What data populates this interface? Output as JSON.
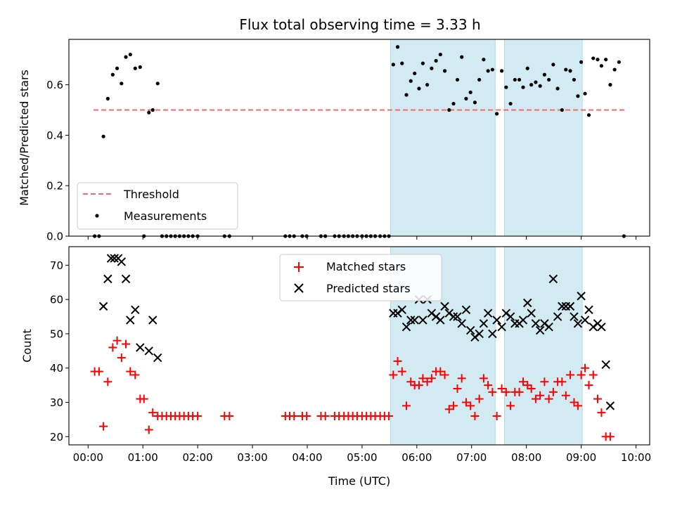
{
  "figure": {
    "title": "Flux total observing time = 3.33 h",
    "xlabel": "Time (UTC)",
    "x_ticks": [
      "00:00",
      "01:00",
      "02:00",
      "03:00",
      "04:00",
      "05:00",
      "06:00",
      "07:00",
      "08:00",
      "09:00",
      "10:00"
    ]
  },
  "colors": {
    "shade": "#add8e6",
    "threshold": "#ff6666",
    "matched": "#ff0000",
    "predicted": "#000000",
    "measurement": "#000000"
  },
  "chart_data": [
    {
      "type": "scatter",
      "ylabel": "Matched/Predicted stars",
      "xlim": [
        -0.35,
        10.25
      ],
      "ylim": [
        0,
        0.78
      ],
      "y_ticks": [
        "0.0",
        "0.2",
        "0.4",
        "0.6"
      ],
      "y_tick_values": [
        0,
        0.2,
        0.4,
        0.6
      ],
      "x_unit": "hours UTC",
      "legend": {
        "position": "lower-left",
        "entries": [
          "Threshold",
          "Measurements"
        ]
      },
      "shaded_intervals": [
        [
          5.52,
          7.43
        ],
        [
          7.6,
          9.02
        ]
      ],
      "threshold": {
        "name": "Threshold",
        "value": 0.5,
        "x_range": [
          0.1,
          9.8
        ]
      },
      "series": [
        {
          "name": "Measurements",
          "points": [
            [
              0.12,
              0.0
            ],
            [
              0.2,
              0.0
            ],
            [
              0.28,
              0.395
            ],
            [
              0.36,
              0.545
            ],
            [
              0.45,
              0.64
            ],
            [
              0.53,
              0.665
            ],
            [
              0.61,
              0.605
            ],
            [
              0.69,
              0.71
            ],
            [
              0.77,
              0.72
            ],
            [
              0.86,
              0.665
            ],
            [
              0.95,
              0.67
            ],
            [
              1.02,
              0.0
            ],
            [
              1.11,
              0.49
            ],
            [
              1.18,
              0.5
            ],
            [
              1.27,
              0.605
            ],
            [
              1.35,
              0.0
            ],
            [
              1.43,
              0.0
            ],
            [
              1.51,
              0.0
            ],
            [
              1.59,
              0.0
            ],
            [
              1.67,
              0.0
            ],
            [
              1.75,
              0.0
            ],
            [
              1.83,
              0.0
            ],
            [
              1.91,
              0.0
            ],
            [
              2.0,
              0.0
            ],
            [
              2.49,
              0.0
            ],
            [
              2.58,
              0.0
            ],
            [
              3.6,
              0.0
            ],
            [
              3.68,
              0.0
            ],
            [
              3.76,
              0.0
            ],
            [
              3.91,
              0.0
            ],
            [
              3.99,
              0.0
            ],
            [
              4.25,
              0.0
            ],
            [
              4.33,
              0.0
            ],
            [
              4.5,
              0.0
            ],
            [
              4.58,
              0.0
            ],
            [
              4.67,
              0.0
            ],
            [
              4.75,
              0.0
            ],
            [
              4.83,
              0.0
            ],
            [
              4.91,
              0.0
            ],
            [
              5.0,
              0.0
            ],
            [
              5.08,
              0.0
            ],
            [
              5.16,
              0.0
            ],
            [
              5.24,
              0.0
            ],
            [
              5.33,
              0.0
            ],
            [
              5.41,
              0.0
            ],
            [
              5.49,
              0.0
            ],
            [
              5.57,
              0.68
            ],
            [
              5.65,
              0.75
            ],
            [
              5.73,
              0.685
            ],
            [
              5.81,
              0.56
            ],
            [
              5.89,
              0.615
            ],
            [
              5.96,
              0.645
            ],
            [
              6.04,
              0.585
            ],
            [
              6.11,
              0.685
            ],
            [
              6.19,
              0.6
            ],
            [
              6.27,
              0.665
            ],
            [
              6.35,
              0.695
            ],
            [
              6.43,
              0.72
            ],
            [
              6.51,
              0.655
            ],
            [
              6.59,
              0.5
            ],
            [
              6.67,
              0.525
            ],
            [
              6.74,
              0.62
            ],
            [
              6.82,
              0.71
            ],
            [
              6.9,
              0.545
            ],
            [
              6.98,
              0.57
            ],
            [
              7.06,
              0.53
            ],
            [
              7.14,
              0.62
            ],
            [
              7.22,
              0.7
            ],
            [
              7.3,
              0.655
            ],
            [
              7.38,
              0.66
            ],
            [
              7.46,
              0.485
            ],
            [
              7.55,
              0.655
            ],
            [
              7.63,
              0.59
            ],
            [
              7.71,
              0.525
            ],
            [
              7.79,
              0.62
            ],
            [
              7.87,
              0.62
            ],
            [
              7.94,
              0.59
            ],
            [
              8.02,
              0.665
            ],
            [
              8.09,
              0.6
            ],
            [
              8.17,
              0.61
            ],
            [
              8.25,
              0.595
            ],
            [
              8.33,
              0.64
            ],
            [
              8.41,
              0.62
            ],
            [
              8.49,
              0.68
            ],
            [
              8.57,
              0.585
            ],
            [
              8.65,
              0.5
            ],
            [
              8.72,
              0.66
            ],
            [
              8.8,
              0.655
            ],
            [
              8.87,
              0.62
            ],
            [
              8.94,
              0.555
            ],
            [
              9.0,
              0.69
            ],
            [
              9.07,
              0.565
            ],
            [
              9.14,
              0.48
            ],
            [
              9.22,
              0.705
            ],
            [
              9.3,
              0.7
            ],
            [
              9.37,
              0.675
            ],
            [
              9.45,
              0.7
            ],
            [
              9.53,
              0.6
            ],
            [
              9.61,
              0.66
            ],
            [
              9.69,
              0.69
            ],
            [
              9.78,
              0.0
            ]
          ]
        }
      ]
    },
    {
      "type": "scatter",
      "ylabel": "Count",
      "xlim": [
        -0.35,
        10.25
      ],
      "ylim": [
        17.6,
        75.4
      ],
      "y_ticks": [
        "20",
        "30",
        "40",
        "50",
        "60",
        "70"
      ],
      "y_tick_values": [
        20,
        30,
        40,
        50,
        60,
        70
      ],
      "x_unit": "hours UTC",
      "legend": {
        "position": "top-center",
        "entries": [
          "Matched stars",
          "Predicted stars"
        ]
      },
      "shaded_intervals": [
        [
          5.52,
          7.43
        ],
        [
          7.6,
          9.02
        ]
      ],
      "series": [
        {
          "name": "Matched stars",
          "marker": "+",
          "points": [
            [
              0.12,
              39
            ],
            [
              0.2,
              39
            ],
            [
              0.28,
              23
            ],
            [
              0.36,
              36
            ],
            [
              0.45,
              46
            ],
            [
              0.53,
              48
            ],
            [
              0.61,
              43
            ],
            [
              0.69,
              47
            ],
            [
              0.77,
              39
            ],
            [
              0.86,
              38
            ],
            [
              0.95,
              31
            ],
            [
              1.02,
              31
            ],
            [
              1.11,
              22
            ],
            [
              1.18,
              27
            ],
            [
              1.27,
              26
            ],
            [
              1.35,
              26
            ],
            [
              1.43,
              26
            ],
            [
              1.51,
              26
            ],
            [
              1.59,
              26
            ],
            [
              1.67,
              26
            ],
            [
              1.75,
              26
            ],
            [
              1.83,
              26
            ],
            [
              1.91,
              26
            ],
            [
              2.0,
              26
            ],
            [
              2.49,
              26
            ],
            [
              2.58,
              26
            ],
            [
              3.6,
              26
            ],
            [
              3.68,
              26
            ],
            [
              3.76,
              26
            ],
            [
              3.91,
              26
            ],
            [
              3.99,
              26
            ],
            [
              4.25,
              26
            ],
            [
              4.33,
              26
            ],
            [
              4.5,
              26
            ],
            [
              4.58,
              26
            ],
            [
              4.67,
              26
            ],
            [
              4.75,
              26
            ],
            [
              4.83,
              26
            ],
            [
              4.91,
              26
            ],
            [
              5.0,
              26
            ],
            [
              5.08,
              26
            ],
            [
              5.16,
              26
            ],
            [
              5.24,
              26
            ],
            [
              5.33,
              26
            ],
            [
              5.41,
              26
            ],
            [
              5.49,
              26
            ],
            [
              5.57,
              38
            ],
            [
              5.65,
              42
            ],
            [
              5.73,
              39
            ],
            [
              5.81,
              29
            ],
            [
              5.89,
              36
            ],
            [
              5.96,
              35
            ],
            [
              6.04,
              35
            ],
            [
              6.11,
              37
            ],
            [
              6.19,
              36
            ],
            [
              6.27,
              37
            ],
            [
              6.35,
              39
            ],
            [
              6.43,
              39
            ],
            [
              6.51,
              38
            ],
            [
              6.59,
              28
            ],
            [
              6.67,
              29
            ],
            [
              6.74,
              34
            ],
            [
              6.82,
              37
            ],
            [
              6.9,
              30
            ],
            [
              6.98,
              29
            ],
            [
              7.06,
              26
            ],
            [
              7.14,
              31
            ],
            [
              7.22,
              37
            ],
            [
              7.3,
              35
            ],
            [
              7.38,
              33
            ],
            [
              7.46,
              26
            ],
            [
              7.55,
              34
            ],
            [
              7.63,
              33
            ],
            [
              7.71,
              29
            ],
            [
              7.79,
              33
            ],
            [
              7.87,
              33
            ],
            [
              7.94,
              36
            ],
            [
              8.02,
              35
            ],
            [
              8.09,
              34
            ],
            [
              8.17,
              31
            ],
            [
              8.25,
              32
            ],
            [
              8.33,
              36
            ],
            [
              8.41,
              31
            ],
            [
              8.49,
              33
            ],
            [
              8.57,
              36
            ],
            [
              8.65,
              36
            ],
            [
              8.72,
              32
            ],
            [
              8.8,
              38
            ],
            [
              8.87,
              30
            ],
            [
              8.94,
              29
            ],
            [
              9.0,
              38
            ],
            [
              9.07,
              40
            ],
            [
              9.14,
              35
            ],
            [
              9.22,
              38
            ],
            [
              9.3,
              31
            ],
            [
              9.37,
              27
            ],
            [
              9.45,
              20
            ],
            [
              9.53,
              20
            ]
          ]
        },
        {
          "name": "Predicted stars",
          "marker": "x",
          "points": [
            [
              0.28,
              58
            ],
            [
              0.36,
              66
            ],
            [
              0.42,
              72
            ],
            [
              0.48,
              72
            ],
            [
              0.55,
              72
            ],
            [
              0.61,
              71
            ],
            [
              0.69,
              66
            ],
            [
              0.77,
              54
            ],
            [
              0.86,
              57
            ],
            [
              0.95,
              46
            ],
            [
              1.11,
              45
            ],
            [
              1.18,
              54
            ],
            [
              1.27,
              43
            ],
            [
              5.57,
              56
            ],
            [
              5.65,
              56
            ],
            [
              5.73,
              57
            ],
            [
              5.81,
              52
            ],
            [
              5.89,
              54
            ],
            [
              5.96,
              54
            ],
            [
              6.04,
              60
            ],
            [
              6.11,
              54
            ],
            [
              6.19,
              60
            ],
            [
              6.27,
              56
            ],
            [
              6.35,
              55
            ],
            [
              6.43,
              54
            ],
            [
              6.51,
              58
            ],
            [
              6.59,
              56
            ],
            [
              6.67,
              55
            ],
            [
              6.74,
              55
            ],
            [
              6.82,
              53
            ],
            [
              6.9,
              57
            ],
            [
              6.98,
              51
            ],
            [
              7.06,
              49
            ],
            [
              7.14,
              50
            ],
            [
              7.22,
              53
            ],
            [
              7.3,
              56
            ],
            [
              7.38,
              50
            ],
            [
              7.46,
              54
            ],
            [
              7.55,
              52
            ],
            [
              7.63,
              56
            ],
            [
              7.71,
              55
            ],
            [
              7.79,
              53
            ],
            [
              7.87,
              53
            ],
            [
              7.94,
              54
            ],
            [
              8.02,
              59
            ],
            [
              8.09,
              56
            ],
            [
              8.17,
              53
            ],
            [
              8.25,
              51
            ],
            [
              8.33,
              53
            ],
            [
              8.41,
              52
            ],
            [
              8.49,
              66
            ],
            [
              8.57,
              55
            ],
            [
              8.65,
              58
            ],
            [
              8.72,
              58
            ],
            [
              8.8,
              58
            ],
            [
              8.87,
              55
            ],
            [
              8.94,
              53
            ],
            [
              9.0,
              61
            ],
            [
              9.07,
              54
            ],
            [
              9.14,
              57
            ],
            [
              9.22,
              52
            ],
            [
              9.3,
              53
            ],
            [
              9.37,
              52
            ],
            [
              9.45,
              41
            ],
            [
              9.53,
              29
            ]
          ]
        }
      ]
    }
  ]
}
